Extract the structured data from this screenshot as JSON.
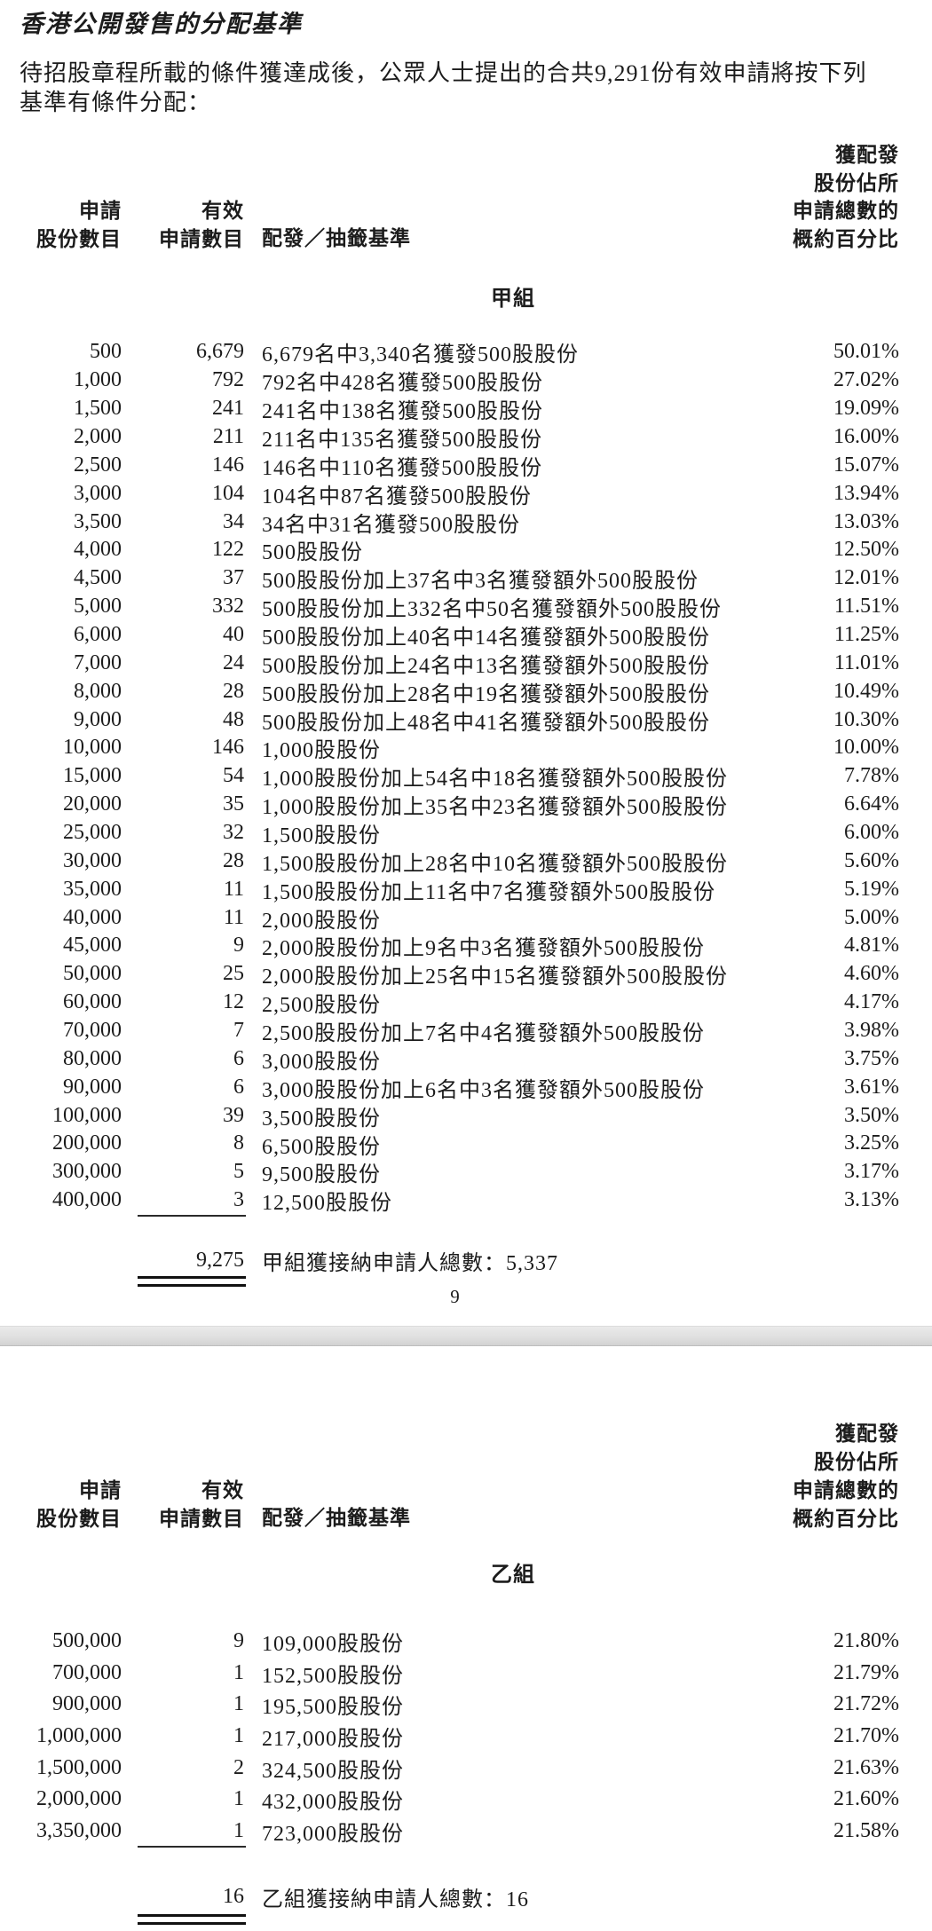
{
  "document": {
    "title": "香港公開發售的分配基準",
    "intro_line1": "待招股章程所載的條件獲達成後，公眾人士提出的合共9,291份有效申請將按下列",
    "intro_line2": "基準有條件分配：",
    "page_number": "9"
  },
  "table_headers": {
    "col1_lines": [
      "申請",
      "股份數目"
    ],
    "col2_lines": [
      "有效",
      "申請數目"
    ],
    "col3": "配發／抽籤基準",
    "col4_lines": [
      "獲配發",
      "股份佔所",
      "申請總數的",
      "概約百分比"
    ]
  },
  "group_a": {
    "label": "甲組",
    "rows": [
      [
        "500",
        "6,679",
        "6,679名中3,340名獲發500股股份",
        "50.01%"
      ],
      [
        "1,000",
        "792",
        "792名中428名獲發500股股份",
        "27.02%"
      ],
      [
        "1,500",
        "241",
        "241名中138名獲發500股股份",
        "19.09%"
      ],
      [
        "2,000",
        "211",
        "211名中135名獲發500股股份",
        "16.00%"
      ],
      [
        "2,500",
        "146",
        "146名中110名獲發500股股份",
        "15.07%"
      ],
      [
        "3,000",
        "104",
        "104名中87名獲發500股股份",
        "13.94%"
      ],
      [
        "3,500",
        "34",
        "34名中31名獲發500股股份",
        "13.03%"
      ],
      [
        "4,000",
        "122",
        "500股股份",
        "12.50%"
      ],
      [
        "4,500",
        "37",
        "500股股份加上37名中3名獲發額外500股股份",
        "12.01%"
      ],
      [
        "5,000",
        "332",
        "500股股份加上332名中50名獲發額外500股股份",
        "11.51%"
      ],
      [
        "6,000",
        "40",
        "500股股份加上40名中14名獲發額外500股股份",
        "11.25%"
      ],
      [
        "7,000",
        "24",
        "500股股份加上24名中13名獲發額外500股股份",
        "11.01%"
      ],
      [
        "8,000",
        "28",
        "500股股份加上28名中19名獲發額外500股股份",
        "10.49%"
      ],
      [
        "9,000",
        "48",
        "500股股份加上48名中41名獲發額外500股股份",
        "10.30%"
      ],
      [
        "10,000",
        "146",
        "1,000股股份",
        "10.00%"
      ],
      [
        "15,000",
        "54",
        "1,000股股份加上54名中18名獲發額外500股股份",
        "7.78%"
      ],
      [
        "20,000",
        "35",
        "1,000股股份加上35名中23名獲發額外500股股份",
        "6.64%"
      ],
      [
        "25,000",
        "32",
        "1,500股股份",
        "6.00%"
      ],
      [
        "30,000",
        "28",
        "1,500股股份加上28名中10名獲發額外500股股份",
        "5.60%"
      ],
      [
        "35,000",
        "11",
        "1,500股股份加上11名中7名獲發額外500股股份",
        "5.19%"
      ],
      [
        "40,000",
        "11",
        "2,000股股份",
        "5.00%"
      ],
      [
        "45,000",
        "9",
        "2,000股股份加上9名中3名獲發額外500股股份",
        "4.81%"
      ],
      [
        "50,000",
        "25",
        "2,000股股份加上25名中15名獲發額外500股股份",
        "4.60%"
      ],
      [
        "60,000",
        "12",
        "2,500股股份",
        "4.17%"
      ],
      [
        "70,000",
        "7",
        "2,500股股份加上7名中4名獲發額外500股股份",
        "3.98%"
      ],
      [
        "80,000",
        "6",
        "3,000股股份",
        "3.75%"
      ],
      [
        "90,000",
        "6",
        "3,000股股份加上6名中3名獲發額外500股股份",
        "3.61%"
      ],
      [
        "100,000",
        "39",
        "3,500股股份",
        "3.50%"
      ],
      [
        "200,000",
        "8",
        "6,500股股份",
        "3.25%"
      ],
      [
        "300,000",
        "5",
        "9,500股股份",
        "3.17%"
      ],
      [
        "400,000",
        "3",
        "12,500股股份",
        "3.13%"
      ]
    ],
    "total_count": "9,275",
    "total_label": "甲組獲接納申請人總數：5,337"
  },
  "group_b": {
    "label": "乙組",
    "rows": [
      [
        "500,000",
        "9",
        "109,000股股份",
        "21.80%"
      ],
      [
        "700,000",
        "1",
        "152,500股股份",
        "21.79%"
      ],
      [
        "900,000",
        "1",
        "195,500股股份",
        "21.72%"
      ],
      [
        "1,000,000",
        "1",
        "217,000股股份",
        "21.70%"
      ],
      [
        "1,500,000",
        "2",
        "324,500股股份",
        "21.63%"
      ],
      [
        "2,000,000",
        "1",
        "432,000股股份",
        "21.60%"
      ],
      [
        "3,350,000",
        "1",
        "723,000股股份",
        "21.58%"
      ]
    ],
    "total_count": "16",
    "total_label": "乙組獲接納申請人總數：16"
  },
  "colors": {
    "text": "#1c1c1c",
    "separator_light": "#eaeaea",
    "separator_dark": "#d2d2d2"
  }
}
